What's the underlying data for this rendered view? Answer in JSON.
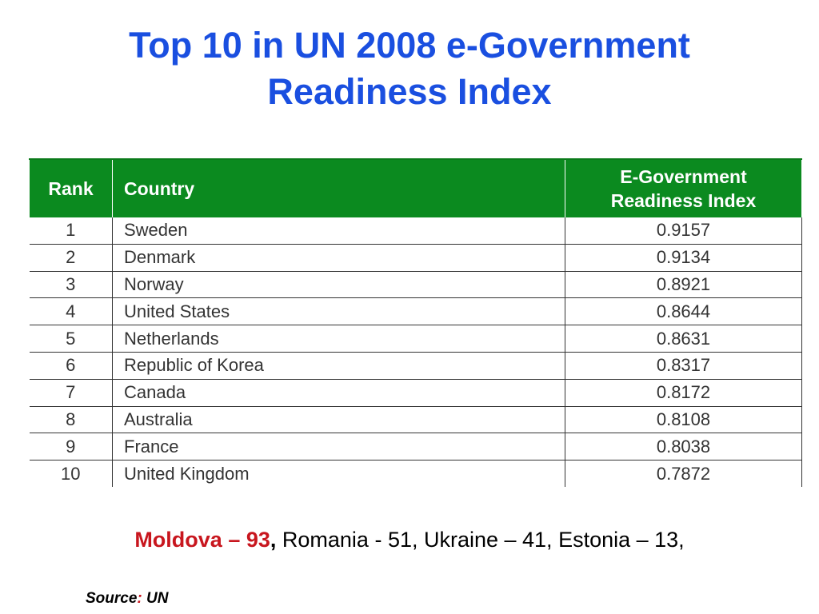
{
  "title": {
    "line1": "Top 10 in UN 2008 e-Government",
    "line2": "Readiness Index"
  },
  "table": {
    "headers": {
      "rank": "Rank",
      "country": "Country",
      "index_line1": "E-Government",
      "index_line2": "Readiness Index"
    },
    "rows": [
      {
        "rank": "1",
        "country": "Sweden",
        "index": "0.9157"
      },
      {
        "rank": "2",
        "country": "Denmark",
        "index": "0.9134"
      },
      {
        "rank": "3",
        "country": "Norway",
        "index": "0.8921"
      },
      {
        "rank": "4",
        "country": "United States",
        "index": "0.8644"
      },
      {
        "rank": "5",
        "country": "Netherlands",
        "index": "0.8631"
      },
      {
        "rank": "6",
        "country": "Republic of Korea",
        "index": "0.8317"
      },
      {
        "rank": "7",
        "country": "Canada",
        "index": "0.8172"
      },
      {
        "rank": "8",
        "country": "Australia",
        "index": "0.8108"
      },
      {
        "rank": "9",
        "country": "France",
        "index": "0.8038"
      },
      {
        "rank": "10",
        "country": "United Kingdom",
        "index": "0.7872"
      }
    ]
  },
  "footer": {
    "moldova": "Moldova – 93",
    "comma": ",",
    "others": " Romania - 51, Ukraine – 41, Estonia – 13,"
  },
  "source": {
    "label": "Source",
    "colon": ":",
    "value": " UN"
  },
  "colors": {
    "title": "#1a4fe0",
    "header_bg": "#0b8a1f",
    "highlight": "#c8161e"
  }
}
